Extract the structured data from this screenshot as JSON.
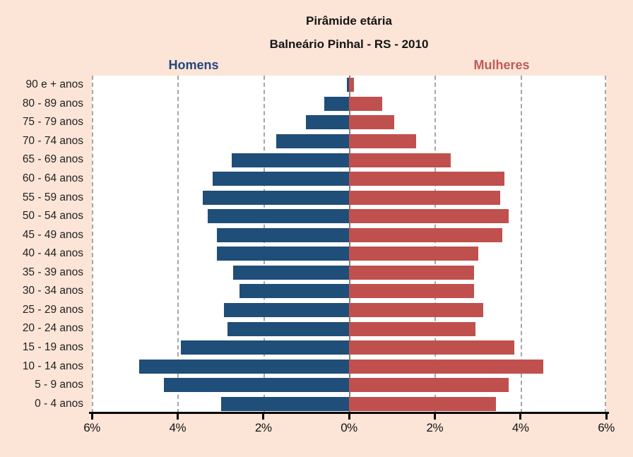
{
  "title": "Pirâmide etária",
  "subtitle": "Balneário Pinhal - RS - 2010",
  "legend": {
    "men": "Homens",
    "women": "Mulheres"
  },
  "colors": {
    "background": "#FCE5D7",
    "plot_background": "#FFFFFF",
    "men_bar": "#1F4E79",
    "women_bar": "#C0504D",
    "men_label": "#23477E",
    "women_label": "#C05B58",
    "gridline": "#A6A6A6",
    "center_line": "#808080",
    "axis": "#000000",
    "text": "#151515"
  },
  "chart_data": {
    "type": "bar",
    "subtype": "population-pyramid",
    "title": "Pirâmide etária",
    "subtitle": "Balneário Pinhal - RS - 2010",
    "orientation": "horizontal",
    "categories": [
      "90 e + anos",
      "80 - 89 anos",
      "75 - 79 anos",
      "70 - 74 anos",
      "65 - 69 anos",
      "60 - 64 anos",
      "55 - 59 anos",
      "50 - 54 anos",
      "45 - 49 anos",
      "40 - 44 anos",
      "35 - 39 anos",
      "30 - 34 anos",
      "25 - 29 anos",
      "20 - 24 anos",
      "15 - 19 anos",
      "10 - 14 anos",
      "5 - 9 anos",
      "0 - 4 anos"
    ],
    "series": [
      {
        "name": "Homens",
        "side": "left",
        "unit": "%",
        "values": [
          0.05,
          0.58,
          1.0,
          1.7,
          2.73,
          3.18,
          3.42,
          3.3,
          3.08,
          3.09,
          2.7,
          2.56,
          2.91,
          2.84,
          3.93,
          4.9,
          4.32,
          2.99
        ]
      },
      {
        "name": "Mulheres",
        "side": "right",
        "unit": "%",
        "values": [
          0.11,
          0.78,
          1.05,
          1.56,
          2.37,
          3.62,
          3.52,
          3.72,
          3.57,
          3.01,
          2.92,
          2.91,
          3.13,
          2.95,
          3.86,
          4.53,
          3.73,
          3.43
        ]
      }
    ],
    "x_axis": {
      "tick_labels": [
        "6%",
        "4%",
        "2%",
        "0%",
        "2%",
        "4%",
        "6%"
      ],
      "tick_values": [
        -6,
        -4,
        -2,
        0,
        2,
        4,
        6
      ],
      "max_percent_each_side": 6,
      "unit": "%"
    },
    "grid": "dashed vertical gridlines every 2%, solid gray line at 0%",
    "legend_position": "above plot, Homens left / Mulheres right"
  }
}
